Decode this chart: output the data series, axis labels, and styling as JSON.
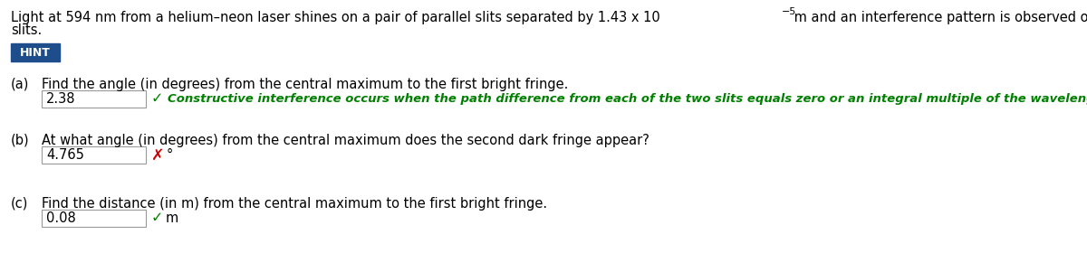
{
  "bg_color": "#ffffff",
  "text_color": "#000000",
  "hint_bg": "#1e4d8c",
  "hint_text_color": "#ffffff",
  "hint_label": "HINT",
  "part_a_label": "(a)",
  "part_a_question": "Find the angle (in degrees) from the central maximum to the first bright fringe.",
  "part_a_answer": "2.38",
  "part_a_feedback": "Constructive interference occurs when the path difference from each of the two slits equals zero or an integral multiple of the wavelength.",
  "part_a_feedback_color": "#008000",
  "part_a_check_color": "#008000",
  "part_b_label": "(b)",
  "part_b_question": "At what angle (in degrees) from the central maximum does the second dark fringe appear?",
  "part_b_answer": "4.765",
  "part_b_unit": "°",
  "part_b_cross_color": "#cc0000",
  "part_c_label": "(c)",
  "part_c_question": "Find the distance (in m) from the central maximum to the first bright fringe.",
  "part_c_answer": "0.08",
  "part_c_unit": "m",
  "part_c_check_color": "#008000",
  "box_border_color": "#999999",
  "font_size_body": 10.5,
  "font_size_hint_badge": 9.0,
  "font_size_feedback": 9.5
}
